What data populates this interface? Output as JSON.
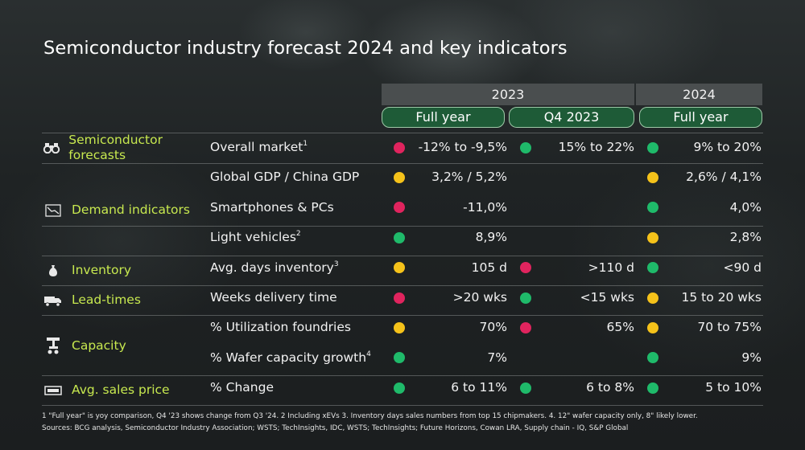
{
  "title": "Semiconductor industry forecast 2024 and key indicators",
  "header": {
    "year_2023": "2023",
    "year_2024": "2024",
    "col_fy23": "Full year",
    "col_q4": "Q4 2023",
    "col_fy24": "Full year"
  },
  "colors": {
    "red": "#e0245e",
    "green": "#1fba6a",
    "yellow": "#f5c21a",
    "category_text": "#c7e84f",
    "pill_fill": "#1e5b37"
  },
  "categories": [
    {
      "label": "Semiconductor forecasts",
      "icon": "binoculars-icon"
    },
    {
      "label": "Demand indicators",
      "icon": "chart-icon"
    },
    {
      "label": "Inventory",
      "icon": "money-bag-icon"
    },
    {
      "label": "Lead-times",
      "icon": "delivery-truck-icon"
    },
    {
      "label": "Capacity",
      "icon": "robot-arm-icon"
    },
    {
      "label": "Avg. sales price",
      "icon": "price-tag-icon"
    }
  ],
  "chart_data": {
    "type": "table",
    "title": "Semiconductor industry forecast 2024 and key indicators",
    "columns": [
      "2023 Full year",
      "Q4 2023",
      "2024 Full year"
    ],
    "rows": [
      {
        "category": "Semiconductor forecasts",
        "indicator": "Overall market",
        "sup": "1",
        "fy23": {
          "value": "-12% to -9,5%",
          "status": "red"
        },
        "q4": {
          "value": "15% to 22%",
          "status": "green"
        },
        "fy24": {
          "value": "9% to 20%",
          "status": "green"
        }
      },
      {
        "category": "Demand indicators",
        "indicator": "Global GDP / China GDP",
        "sup": "",
        "fy23": {
          "value": "3,2% / 5,2%",
          "status": "yellow"
        },
        "q4": {
          "value": "",
          "status": ""
        },
        "fy24": {
          "value": "2,6% / 4,1%",
          "status": "yellow"
        }
      },
      {
        "category": "Demand indicators",
        "indicator": "Smartphones & PCs",
        "sup": "",
        "fy23": {
          "value": "-11,0%",
          "status": "red"
        },
        "q4": {
          "value": "",
          "status": ""
        },
        "fy24": {
          "value": "4,0%",
          "status": "green"
        }
      },
      {
        "category": "Demand indicators",
        "indicator": "Light vehicles",
        "sup": "2",
        "fy23": {
          "value": "8,9%",
          "status": "green"
        },
        "q4": {
          "value": "",
          "status": ""
        },
        "fy24": {
          "value": "2,8%",
          "status": "yellow"
        }
      },
      {
        "category": "Inventory",
        "indicator": "Avg. days inventory",
        "sup": "3",
        "fy23": {
          "value": "105 d",
          "status": "yellow"
        },
        "q4": {
          "value": ">110 d",
          "status": "red"
        },
        "fy24": {
          "value": "<90 d",
          "status": "green"
        }
      },
      {
        "category": "Lead-times",
        "indicator": "Weeks delivery time",
        "sup": "",
        "fy23": {
          "value": ">20 wks",
          "status": "red"
        },
        "q4": {
          "value": "<15 wks",
          "status": "green"
        },
        "fy24": {
          "value": "15 to 20 wks",
          "status": "yellow"
        }
      },
      {
        "category": "Capacity",
        "indicator": "% Utilization foundries",
        "sup": "",
        "fy23": {
          "value": "70%",
          "status": "yellow"
        },
        "q4": {
          "value": "65%",
          "status": "red"
        },
        "fy24": {
          "value": "70 to 75%",
          "status": "yellow"
        }
      },
      {
        "category": "Capacity",
        "indicator": "% Wafer capacity growth",
        "sup": "4",
        "fy23": {
          "value": "7%",
          "status": "green"
        },
        "q4": {
          "value": "",
          "status": ""
        },
        "fy24": {
          "value": "9%",
          "status": "green"
        }
      },
      {
        "category": "Avg. sales price",
        "indicator": "% Change",
        "sup": "",
        "fy23": {
          "value": "6 to 11%",
          "status": "green"
        },
        "q4": {
          "value": "6 to 8%",
          "status": "green"
        },
        "fy24": {
          "value": "5 to 10%",
          "status": "green"
        }
      }
    ]
  },
  "footnotes": {
    "line1": "1 \"Full year\" is yoy comparison, Q4 '23 shows change from Q3 '24. 2 Including xEVs 3. Inventory days sales numbers from top 15 chipmakers. 4. 12\" wafer capacity only, 8\" likely lower.",
    "line2": "Sources: BCG analysis, Semiconductor Industry Association; WSTS; TechInsights, IDC, WSTS; TechInsights; Future Horizons, Cowan LRA, Supply chain - IQ, S&P Global"
  }
}
